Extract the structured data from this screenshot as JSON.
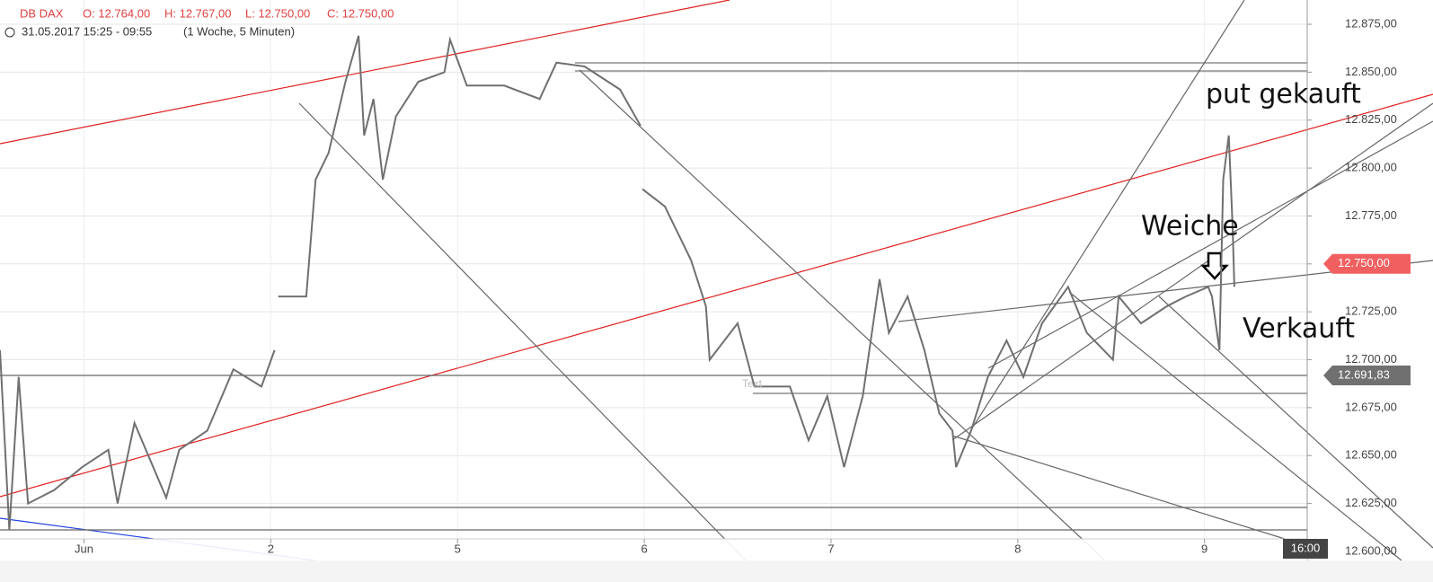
{
  "chart_data": {
    "type": "line",
    "header": {
      "symbol": "DB DAX",
      "open": "O: 12.764,00",
      "high": "H: 12.767,00",
      "low": "L: 12.750,00",
      "close": "C: 12.750,00",
      "range": "31.05.2017 15:25 - 09:55",
      "period": "(1 Woche, 5 Minuten)"
    },
    "x": [
      -0.45,
      -0.4,
      -0.35,
      -0.3,
      -0.16,
      -0.01,
      0.13,
      0.18,
      0.27,
      0.44,
      0.51,
      0.66,
      0.8,
      0.95,
      1.02,
      1.03,
      1.04,
      1.19,
      1.24,
      1.31,
      1.4,
      1.47,
      1.5,
      1.55,
      1.6,
      1.67,
      1.79,
      1.93,
      1.96,
      2.05,
      2.25,
      2.44,
      2.53,
      2.68,
      2.87,
      2.98,
      2.985,
      2.99,
      3.11,
      3.25,
      3.33,
      3.35,
      3.5,
      3.59,
      3.78,
      3.88,
      3.98,
      4.07,
      4.17,
      4.26,
      4.31,
      4.41,
      4.5,
      4.58,
      4.65,
      4.67,
      4.75,
      4.84,
      4.94,
      5.03,
      5.13,
      5.27,
      5.37,
      5.51,
      5.54,
      5.66,
      5.8,
      5.9,
      6.02,
      6.04,
      6.08,
      6.1,
      6.13,
      6.15,
      6.16
    ],
    "series": [
      {
        "name": "DB DAX",
        "color": "#707070",
        "values": [
          12705,
          12611,
          12691,
          12625,
          12632,
          12644,
          12653,
          12625,
          12667,
          12628,
          12653,
          12663,
          12695,
          12686,
          12705,
          null,
          12733,
          12733,
          12794,
          12808,
          12845,
          12869,
          12817,
          12836,
          12794,
          12827,
          12845,
          12850,
          12867,
          12843,
          12843,
          12836,
          12855,
          12853,
          12841,
          12822,
          null,
          12789,
          12780,
          12752,
          12728,
          12700,
          12719,
          12686,
          12686,
          12658,
          12681,
          12644,
          12681,
          12742,
          12714,
          12733,
          12705,
          12672,
          12663,
          12644,
          12663,
          12691,
          12710,
          12691,
          12719,
          12738,
          12714,
          12700,
          12733,
          12719,
          12728,
          12733,
          12738,
          12733,
          12705,
          12794,
          12817,
          12770,
          12738
        ]
      }
    ],
    "xlim": [
      -0.45,
      6.55
    ],
    "xticks": [
      {
        "value": 0,
        "label": "Jun"
      },
      {
        "value": 1,
        "label": "2"
      },
      {
        "value": 2,
        "label": "5"
      },
      {
        "value": 3,
        "label": "6"
      },
      {
        "value": 4,
        "label": "7"
      },
      {
        "value": 5,
        "label": "8"
      },
      {
        "value": 6,
        "label": "9"
      }
    ],
    "ylim": [
      12595.3,
      12887.65
    ],
    "yticks": [
      {
        "value": 12600,
        "label": "12.600,00"
      },
      {
        "value": 12625,
        "label": "12.625,00"
      },
      {
        "value": 12650,
        "label": "12.650,00"
      },
      {
        "value": 12675,
        "label": "12.675,00"
      },
      {
        "value": 12700,
        "label": "12.700,00"
      },
      {
        "value": 12725,
        "label": "12.725,00"
      },
      {
        "value": 12750,
        "label": "12.750,00"
      },
      {
        "value": 12775,
        "label": "12.775,00"
      },
      {
        "value": 12800,
        "label": "12.800,00"
      },
      {
        "value": 12825,
        "label": "12.825,00"
      },
      {
        "value": 12850,
        "label": "12.850,00"
      },
      {
        "value": 12875,
        "label": "12.875,00"
      }
    ],
    "grid": true,
    "price_tags": [
      {
        "value": 12750,
        "label": "12.750,00",
        "color": "#f06060"
      },
      {
        "value": 12691.83,
        "label": "12.691,83",
        "color": "#707070"
      }
    ],
    "time_tag": "16:00",
    "annotations": [
      "put gekauft",
      "Weiche",
      "Verkauft",
      "Text"
    ]
  }
}
